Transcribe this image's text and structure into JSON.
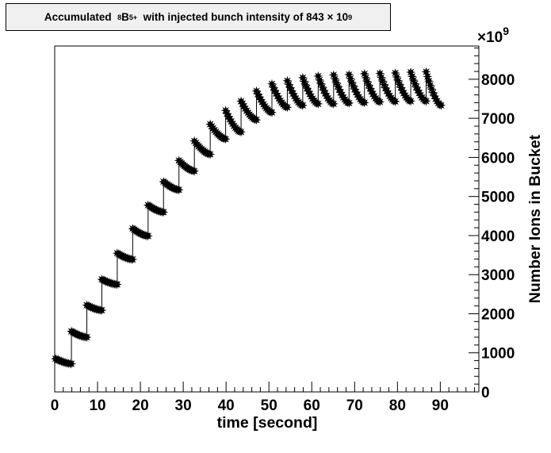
{
  "chart_data": {
    "type": "line",
    "title": {
      "prefix": "Accumulated",
      "mass_number": "8",
      "element": "B",
      "charge": "5+",
      "middle": "with injected bunch intensity of 843",
      "times": "×",
      "base": "10",
      "exponent": "9"
    },
    "xlabel": "time [second]",
    "ylabel": "Number Ions in Bucket",
    "y_multiplier": {
      "times": "×",
      "base": "10",
      "exponent": "9"
    },
    "xlim": [
      0,
      99
    ],
    "ylim": [
      0,
      8850
    ],
    "x_ticks": [
      "0",
      "10",
      "20",
      "30",
      "40",
      "50",
      "60",
      "70",
      "80",
      "90"
    ],
    "y_ticks": [
      "0",
      "1000",
      "2000",
      "3000",
      "4000",
      "5000",
      "6000",
      "7000",
      "8000"
    ],
    "y_axis_side": "right",
    "grid": false,
    "marker": "star",
    "injection_period_s": 3.6,
    "injection_amount": 843,
    "cycle_peaks": [
      {
        "t": 0.2,
        "y": 850
      },
      {
        "t": 3.9,
        "y": 1550
      },
      {
        "t": 7.5,
        "y": 2220
      },
      {
        "t": 11.0,
        "y": 2880
      },
      {
        "t": 14.6,
        "y": 3550
      },
      {
        "t": 18.2,
        "y": 4180
      },
      {
        "t": 21.8,
        "y": 4780
      },
      {
        "t": 25.4,
        "y": 5380
      },
      {
        "t": 29.0,
        "y": 5920
      },
      {
        "t": 32.6,
        "y": 6420
      },
      {
        "t": 36.3,
        "y": 6850
      },
      {
        "t": 39.9,
        "y": 7200
      },
      {
        "t": 43.5,
        "y": 7440
      },
      {
        "t": 47.1,
        "y": 7700
      },
      {
        "t": 50.7,
        "y": 7880
      },
      {
        "t": 54.3,
        "y": 7960
      },
      {
        "t": 57.9,
        "y": 8040
      },
      {
        "t": 61.5,
        "y": 8080
      },
      {
        "t": 65.1,
        "y": 8110
      },
      {
        "t": 68.7,
        "y": 8120
      },
      {
        "t": 72.3,
        "y": 8140
      },
      {
        "t": 75.9,
        "y": 8150
      },
      {
        "t": 79.5,
        "y": 8160
      },
      {
        "t": 83.1,
        "y": 8180
      },
      {
        "t": 86.7,
        "y": 8190
      }
    ],
    "cycle_troughs": [
      {
        "t": 3.9,
        "y": 720
      },
      {
        "t": 7.5,
        "y": 1400
      },
      {
        "t": 11.0,
        "y": 2090
      },
      {
        "t": 14.6,
        "y": 2750
      },
      {
        "t": 18.2,
        "y": 3390
      },
      {
        "t": 21.8,
        "y": 3990
      },
      {
        "t": 25.4,
        "y": 4600
      },
      {
        "t": 29.0,
        "y": 5170
      },
      {
        "t": 32.6,
        "y": 5650
      },
      {
        "t": 36.3,
        "y": 6080
      },
      {
        "t": 39.9,
        "y": 6470
      },
      {
        "t": 43.5,
        "y": 6650
      },
      {
        "t": 47.1,
        "y": 6960
      },
      {
        "t": 50.7,
        "y": 7150
      },
      {
        "t": 54.3,
        "y": 7280
      },
      {
        "t": 57.9,
        "y": 7330
      },
      {
        "t": 61.5,
        "y": 7370
      },
      {
        "t": 65.1,
        "y": 7370
      },
      {
        "t": 68.7,
        "y": 7390
      },
      {
        "t": 72.3,
        "y": 7400
      },
      {
        "t": 75.9,
        "y": 7420
      },
      {
        "t": 79.5,
        "y": 7430
      },
      {
        "t": 83.1,
        "y": 7440
      },
      {
        "t": 86.7,
        "y": 7440
      },
      {
        "t": 90.2,
        "y": 7330
      }
    ]
  }
}
